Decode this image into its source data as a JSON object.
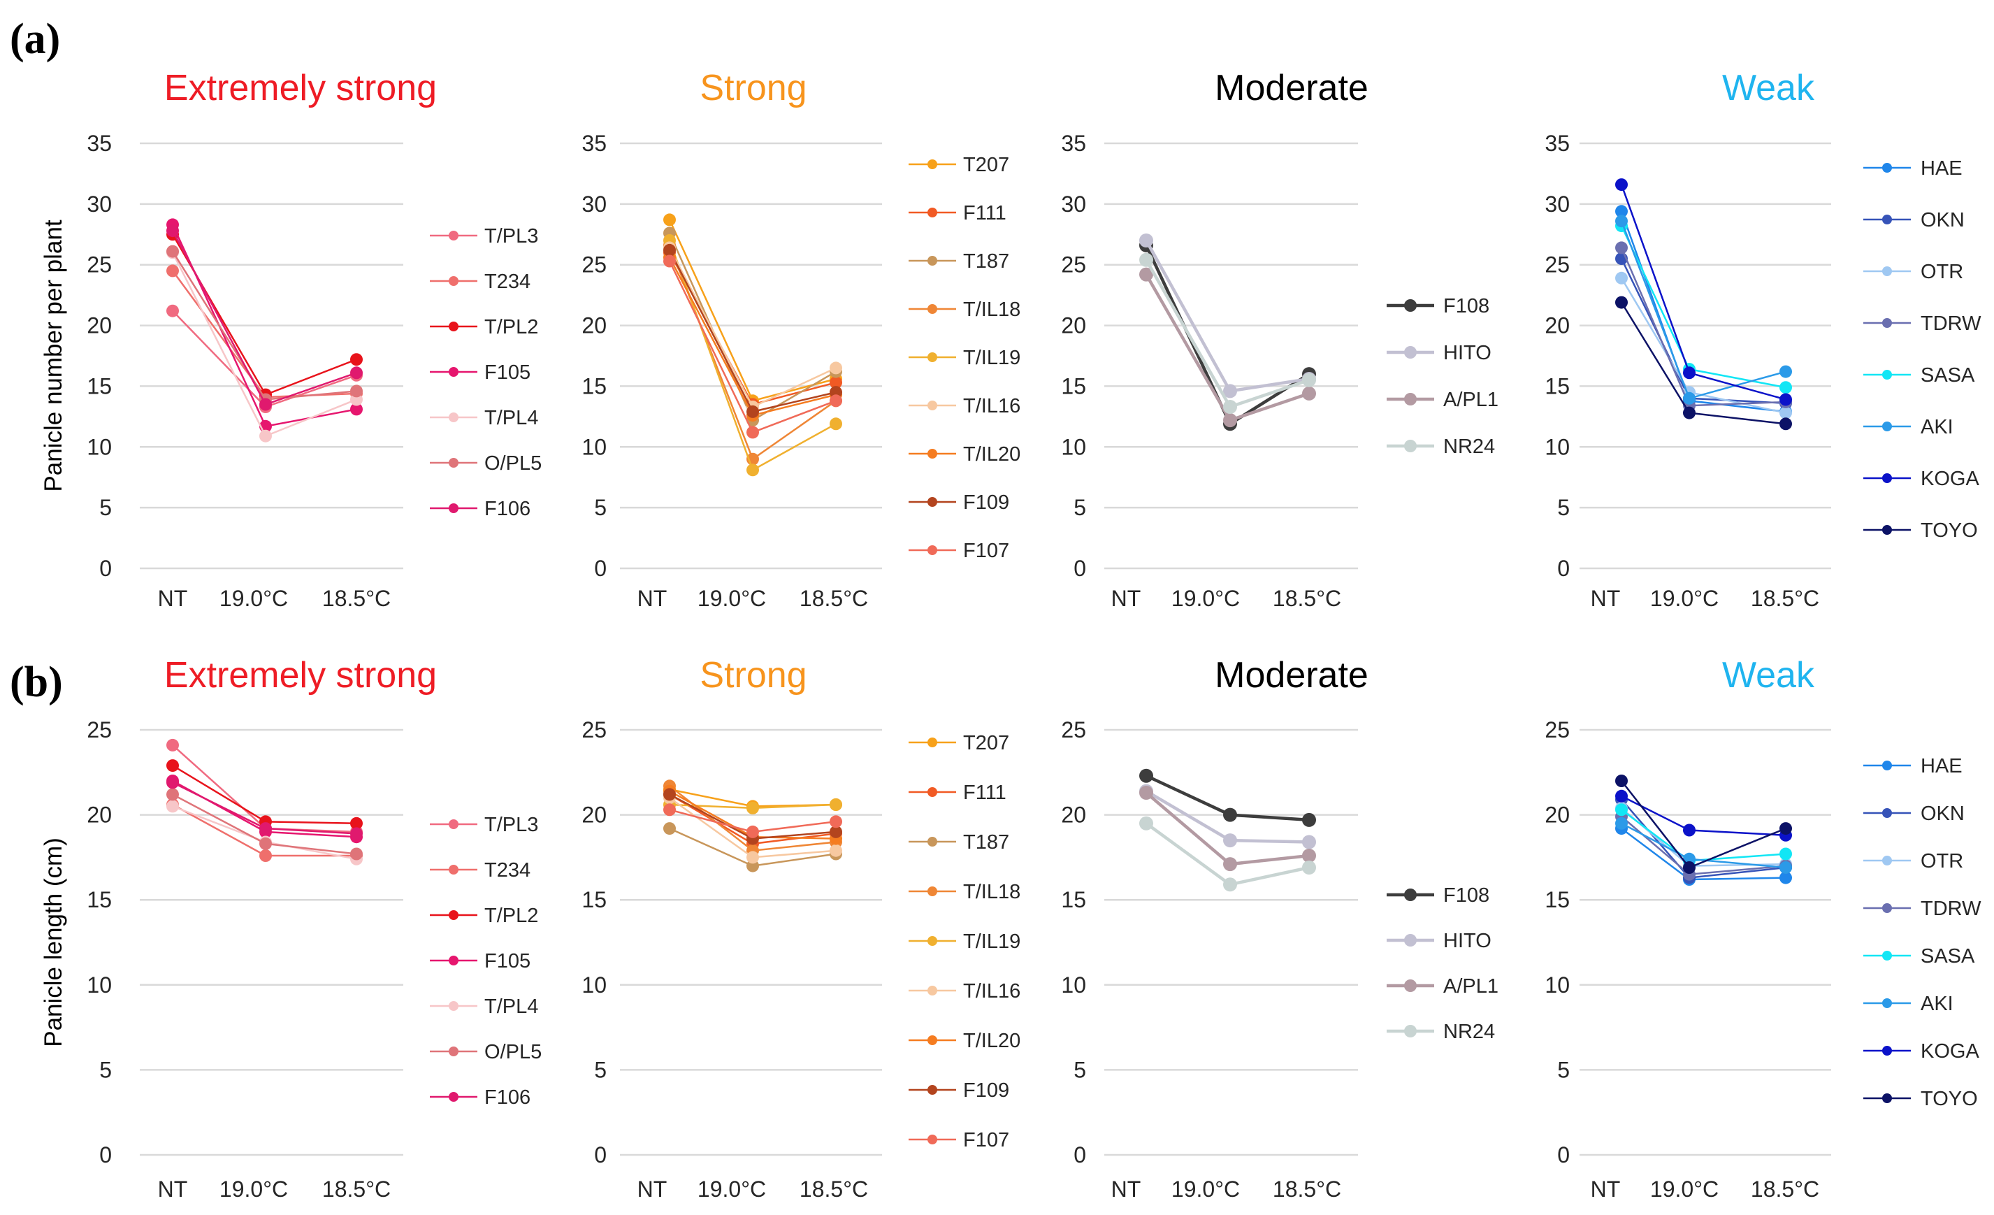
{
  "figure": {
    "row_labels": [
      "(a)",
      "(b)"
    ],
    "groups": [
      {
        "title": "Extremely strong",
        "color": "#ee1c25"
      },
      {
        "title": "Strong",
        "color": "#f7941d"
      },
      {
        "title": "Moderate",
        "color": "#000000"
      },
      {
        "title": "Weak",
        "color": "#1fb4ef"
      }
    ]
  },
  "chart_data": [
    {
      "type": "line",
      "row": "a",
      "group": "Extremely strong",
      "title": "Extremely strong",
      "title_color": "#ee1c25",
      "categories": [
        "NT",
        "19.0°C",
        "18.5°C"
      ],
      "ylabel": "Panicle number per plant",
      "ylim": [
        0,
        35
      ],
      "yticks": [
        0,
        5,
        10,
        15,
        20,
        25,
        30,
        35
      ],
      "legend_position": "right",
      "series": [
        {
          "name": "T/PL3",
          "color": "#f06a80",
          "values": [
            21.2,
            13.3,
            15.9
          ]
        },
        {
          "name": "T234",
          "color": "#ef6f6c",
          "values": [
            24.5,
            14.1,
            14.4
          ]
        },
        {
          "name": "T/PL2",
          "color": "#e8131b",
          "values": [
            27.5,
            14.3,
            17.2
          ]
        },
        {
          "name": "F105",
          "color": "#e6166e",
          "values": [
            28.3,
            11.7,
            13.1
          ]
        },
        {
          "name": "T/PL4",
          "color": "#f7c6c8",
          "values": [
            26.0,
            10.9,
            13.9
          ]
        },
        {
          "name": "O/PL5",
          "color": "#df7479",
          "values": [
            26.1,
            13.9,
            14.6
          ]
        },
        {
          "name": "F106",
          "color": "#e0196e",
          "values": [
            27.8,
            13.5,
            16.1
          ]
        }
      ]
    },
    {
      "type": "line",
      "row": "a",
      "group": "Strong",
      "title": "Strong",
      "title_color": "#f7941d",
      "categories": [
        "NT",
        "19.0°C",
        "18.5°C"
      ],
      "ylabel": "",
      "ylim": [
        0,
        35
      ],
      "yticks": [
        0,
        5,
        10,
        15,
        20,
        25,
        30,
        35
      ],
      "legend_position": "right",
      "series": [
        {
          "name": "T207",
          "color": "#f7a11a",
          "values": [
            28.7,
            13.8,
            15.6
          ]
        },
        {
          "name": "F111",
          "color": "#f15a24",
          "values": [
            26.0,
            13.5,
            15.3
          ]
        },
        {
          "name": "T187",
          "color": "#c8965a",
          "values": [
            27.6,
            12.2,
            16.2
          ]
        },
        {
          "name": "T/IL18",
          "color": "#ef8635",
          "values": [
            26.6,
            9.0,
            13.8
          ]
        },
        {
          "name": "T/IL19",
          "color": "#f0b02f",
          "values": [
            27.0,
            8.1,
            11.9
          ]
        },
        {
          "name": "T/IL16",
          "color": "#f7c8a0",
          "values": [
            26.4,
            13.3,
            16.5
          ]
        },
        {
          "name": "T/IL20",
          "color": "#f57c20",
          "values": [
            25.6,
            12.6,
            14.3
          ]
        },
        {
          "name": "F109",
          "color": "#b3441e",
          "values": [
            26.2,
            12.9,
            14.5
          ]
        },
        {
          "name": "F107",
          "color": "#f06a58",
          "values": [
            25.3,
            11.2,
            13.8
          ]
        }
      ]
    },
    {
      "type": "line",
      "row": "a",
      "group": "Moderate",
      "title": "Moderate",
      "title_color": "#000000",
      "categories": [
        "NT",
        "19.0°C",
        "18.5°C"
      ],
      "ylabel": "",
      "ylim": [
        0,
        35
      ],
      "yticks": [
        0,
        5,
        10,
        15,
        20,
        25,
        30,
        35
      ],
      "legend_position": "right",
      "series": [
        {
          "name": "F108",
          "color": "#3d3d3d",
          "values": [
            26.6,
            11.9,
            16.0
          ]
        },
        {
          "name": "HITO",
          "color": "#c2c0d2",
          "values": [
            27.0,
            14.6,
            15.6
          ]
        },
        {
          "name": "A/PL1",
          "color": "#b39aa2",
          "values": [
            24.2,
            12.2,
            14.4
          ]
        },
        {
          "name": "NR24",
          "color": "#c8d4d2",
          "values": [
            25.4,
            13.3,
            15.5
          ]
        }
      ]
    },
    {
      "type": "line",
      "row": "a",
      "group": "Weak",
      "title": "Weak",
      "title_color": "#1fb4ef",
      "categories": [
        "NT",
        "19.0°C",
        "18.5°C"
      ],
      "ylabel": "",
      "ylim": [
        0,
        35
      ],
      "yticks": [
        0,
        5,
        10,
        15,
        20,
        25,
        30,
        35
      ],
      "legend_position": "right",
      "series": [
        {
          "name": "HAE",
          "color": "#1f86ea",
          "values": [
            29.4,
            13.8,
            12.9
          ]
        },
        {
          "name": "OKN",
          "color": "#3653b8",
          "values": [
            25.5,
            14.0,
            13.6
          ]
        },
        {
          "name": "OTR",
          "color": "#9fc8f2",
          "values": [
            23.9,
            14.5,
            12.8
          ]
        },
        {
          "name": "TDRW",
          "color": "#6a6fb0",
          "values": [
            26.4,
            13.4,
            13.7
          ]
        },
        {
          "name": "SASA",
          "color": "#12e6f5",
          "values": [
            28.2,
            16.4,
            14.9
          ]
        },
        {
          "name": "AKI",
          "color": "#2b9ae8",
          "values": [
            28.6,
            14.0,
            16.2
          ]
        },
        {
          "name": "KOGA",
          "color": "#0b12c9",
          "values": [
            31.6,
            16.1,
            13.9
          ]
        },
        {
          "name": "TOYO",
          "color": "#0c1266",
          "values": [
            21.9,
            12.8,
            11.9
          ]
        }
      ]
    },
    {
      "type": "line",
      "row": "b",
      "group": "Extremely strong",
      "title": "Extremely strong",
      "title_color": "#ee1c25",
      "categories": [
        "NT",
        "19.0°C",
        "18.5°C"
      ],
      "ylabel": "Panicle length (cm)",
      "ylim": [
        0,
        25
      ],
      "yticks": [
        0,
        5,
        10,
        15,
        20,
        25
      ],
      "legend_position": "right",
      "series": [
        {
          "name": "T/PL3",
          "color": "#f06a80",
          "values": [
            24.1,
            19.2,
            19.0
          ]
        },
        {
          "name": "T234",
          "color": "#ef6f6c",
          "values": [
            20.6,
            17.6,
            17.6
          ]
        },
        {
          "name": "T/PL2",
          "color": "#e8131b",
          "values": [
            22.9,
            19.6,
            19.5
          ]
        },
        {
          "name": "F105",
          "color": "#e6166e",
          "values": [
            22.0,
            19.0,
            18.7
          ]
        },
        {
          "name": "T/PL4",
          "color": "#f7c6c8",
          "values": [
            20.5,
            18.4,
            17.4
          ]
        },
        {
          "name": "O/PL5",
          "color": "#df7479",
          "values": [
            21.2,
            18.3,
            17.7
          ]
        },
        {
          "name": "F106",
          "color": "#e0196e",
          "values": [
            21.9,
            19.2,
            18.9
          ]
        }
      ]
    },
    {
      "type": "line",
      "row": "b",
      "group": "Strong",
      "title": "Strong",
      "title_color": "#f7941d",
      "categories": [
        "NT",
        "19.0°C",
        "18.5°C"
      ],
      "ylabel": "",
      "ylim": [
        0,
        25
      ],
      "yticks": [
        0,
        5,
        10,
        15,
        20,
        25
      ],
      "legend_position": "right",
      "series": [
        {
          "name": "T207",
          "color": "#f7a11a",
          "values": [
            21.5,
            20.5,
            20.6
          ]
        },
        {
          "name": "F111",
          "color": "#f15a24",
          "values": [
            21.2,
            18.3,
            18.9
          ]
        },
        {
          "name": "T187",
          "color": "#c8965a",
          "values": [
            19.2,
            17.0,
            17.7
          ]
        },
        {
          "name": "T/IL18",
          "color": "#ef8635",
          "values": [
            21.7,
            17.9,
            18.4
          ]
        },
        {
          "name": "T/IL19",
          "color": "#f0b02f",
          "values": [
            20.6,
            20.4,
            20.6
          ]
        },
        {
          "name": "T/IL16",
          "color": "#f7c8a0",
          "values": [
            21.0,
            17.5,
            17.9
          ]
        },
        {
          "name": "T/IL20",
          "color": "#f57c20",
          "values": [
            21.4,
            18.7,
            18.6
          ]
        },
        {
          "name": "F109",
          "color": "#b3441e",
          "values": [
            21.2,
            18.6,
            19.0
          ]
        },
        {
          "name": "F107",
          "color": "#f06a58",
          "values": [
            20.3,
            19.0,
            19.6
          ]
        }
      ]
    },
    {
      "type": "line",
      "row": "b",
      "group": "Moderate",
      "title": "Moderate",
      "title_color": "#000000",
      "categories": [
        "NT",
        "19.0°C",
        "18.5°C"
      ],
      "ylabel": "",
      "ylim": [
        0,
        25
      ],
      "yticks": [
        0,
        5,
        10,
        15,
        20,
        25
      ],
      "legend_position": "right",
      "series": [
        {
          "name": "F108",
          "color": "#3d3d3d",
          "values": [
            22.3,
            20.0,
            19.7
          ]
        },
        {
          "name": "HITO",
          "color": "#c2c0d2",
          "values": [
            21.4,
            18.5,
            18.4
          ]
        },
        {
          "name": "A/PL1",
          "color": "#b39aa2",
          "values": [
            21.3,
            17.1,
            17.6
          ]
        },
        {
          "name": "NR24",
          "color": "#c8d4d2",
          "values": [
            19.5,
            15.9,
            16.9
          ]
        }
      ]
    },
    {
      "type": "line",
      "row": "b",
      "group": "Weak",
      "title": "Weak",
      "title_color": "#1fb4ef",
      "categories": [
        "NT",
        "19.0°C",
        "18.5°C"
      ],
      "ylabel": "",
      "ylim": [
        0,
        25
      ],
      "yticks": [
        0,
        5,
        10,
        15,
        20,
        25
      ],
      "legend_position": "right",
      "series": [
        {
          "name": "HAE",
          "color": "#1f86ea",
          "values": [
            19.2,
            16.2,
            16.3
          ]
        },
        {
          "name": "OKN",
          "color": "#3653b8",
          "values": [
            20.9,
            16.3,
            16.9
          ]
        },
        {
          "name": "OTR",
          "color": "#9fc8f2",
          "values": [
            20.4,
            17.0,
            17.1
          ]
        },
        {
          "name": "TDRW",
          "color": "#6a6fb0",
          "values": [
            19.9,
            16.5,
            17.0
          ]
        },
        {
          "name": "SASA",
          "color": "#12e6f5",
          "values": [
            20.3,
            17.3,
            17.7
          ]
        },
        {
          "name": "AKI",
          "color": "#2b9ae8",
          "values": [
            19.5,
            17.4,
            16.9
          ]
        },
        {
          "name": "KOGA",
          "color": "#0b12c9",
          "values": [
            21.1,
            19.1,
            18.8
          ]
        },
        {
          "name": "TOYO",
          "color": "#0c1266",
          "values": [
            22.0,
            16.9,
            19.2
          ]
        }
      ]
    }
  ]
}
